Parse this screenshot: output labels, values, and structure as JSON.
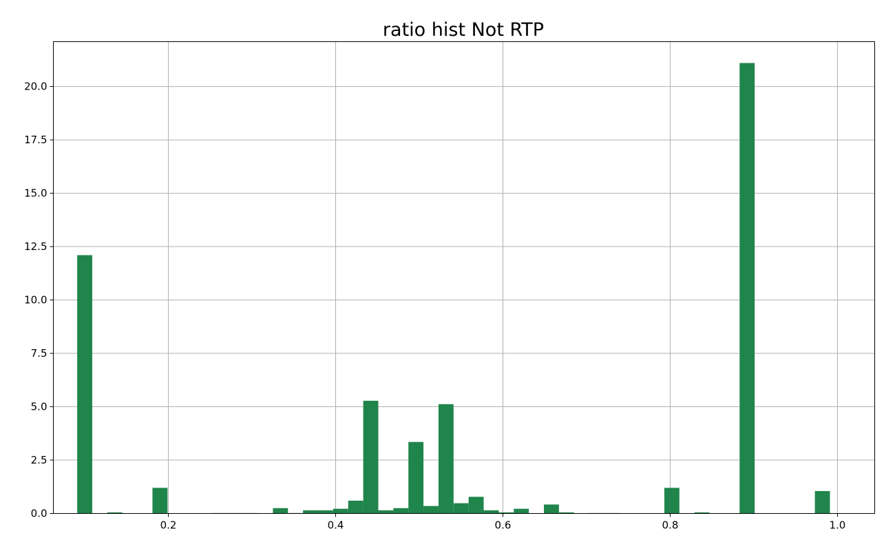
{
  "chart_data": {
    "type": "bar",
    "title": "ratio hist Not RTP",
    "xlabel": "",
    "ylabel": "",
    "xlim": [
      0.0625,
      1.0445
    ],
    "ylim": [
      0,
      22.1
    ],
    "grid": true,
    "bar_color": "#20854b",
    "bin_width": 0.018,
    "x_ticks": [
      0.2,
      0.4,
      0.6,
      0.8,
      1.0
    ],
    "x_tick_labels": [
      "0.2",
      "0.4",
      "0.6",
      "0.8",
      "1.0"
    ],
    "y_ticks": [
      0,
      2.5,
      5,
      7.5,
      10,
      12.5,
      15,
      17.5,
      20
    ],
    "y_tick_labels": [
      "0.0",
      "2.5",
      "5.0",
      "7.5",
      "10.0",
      "12.5",
      "15.0",
      "17.5",
      "20.0"
    ],
    "bins": [
      {
        "x": 0.1,
        "value": 12.1
      },
      {
        "x": 0.136,
        "value": 0.05
      },
      {
        "x": 0.19,
        "value": 1.2
      },
      {
        "x": 0.262,
        "value": 0.02
      },
      {
        "x": 0.28,
        "value": 0.02
      },
      {
        "x": 0.298,
        "value": 0.02
      },
      {
        "x": 0.334,
        "value": 0.25
      },
      {
        "x": 0.352,
        "value": 0.02
      },
      {
        "x": 0.37,
        "value": 0.15
      },
      {
        "x": 0.388,
        "value": 0.15
      },
      {
        "x": 0.406,
        "value": 0.22
      },
      {
        "x": 0.424,
        "value": 0.6
      },
      {
        "x": 0.442,
        "value": 5.28
      },
      {
        "x": 0.46,
        "value": 0.15
      },
      {
        "x": 0.478,
        "value": 0.25
      },
      {
        "x": 0.496,
        "value": 3.35
      },
      {
        "x": 0.514,
        "value": 0.35
      },
      {
        "x": 0.532,
        "value": 5.12
      },
      {
        "x": 0.55,
        "value": 0.48
      },
      {
        "x": 0.568,
        "value": 0.78
      },
      {
        "x": 0.586,
        "value": 0.15
      },
      {
        "x": 0.604,
        "value": 0.05
      },
      {
        "x": 0.622,
        "value": 0.22
      },
      {
        "x": 0.658,
        "value": 0.42
      },
      {
        "x": 0.676,
        "value": 0.05
      },
      {
        "x": 0.712,
        "value": 0.02
      },
      {
        "x": 0.73,
        "value": 0.02
      },
      {
        "x": 0.802,
        "value": 1.2
      },
      {
        "x": 0.838,
        "value": 0.05
      },
      {
        "x": 0.892,
        "value": 21.1
      },
      {
        "x": 0.982,
        "value": 1.05
      }
    ]
  }
}
